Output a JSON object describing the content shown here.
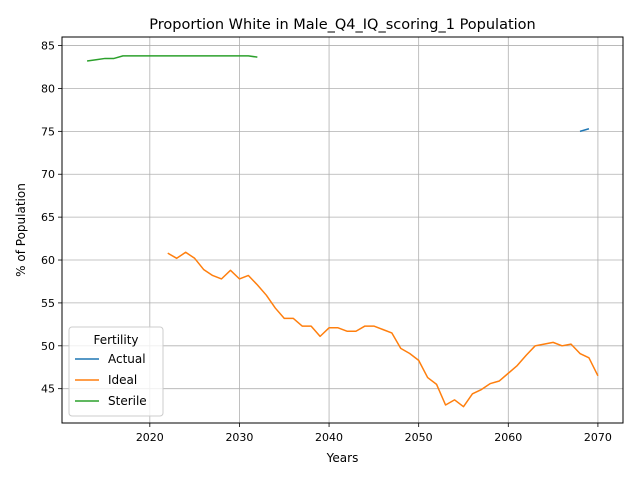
{
  "chart_data": {
    "type": "line",
    "title": "Proportion White in Male_Q4_IQ_scoring_1 Population",
    "xlabel": "Years",
    "ylabel": "% of Population",
    "xlim": [
      2010.2,
      2072.8
    ],
    "ylim": [
      41.0,
      86.0
    ],
    "xticks": [
      2020,
      2030,
      2040,
      2050,
      2060,
      2070
    ],
    "yticks": [
      45,
      50,
      55,
      60,
      65,
      70,
      75,
      80,
      85
    ],
    "grid": true,
    "legend": {
      "title": "Fertility",
      "position": "lower-left"
    },
    "colors": {
      "Actual": "#1f77b4",
      "Ideal": "#ff7f0e",
      "Sterile": "#2ca02c"
    },
    "series": [
      {
        "name": "Actual",
        "x": [
          2068,
          2069
        ],
        "y": [
          75.0,
          75.3
        ]
      },
      {
        "name": "Ideal",
        "x": [
          2022,
          2023,
          2024,
          2025,
          2026,
          2027,
          2028,
          2029,
          2030,
          2031,
          2032,
          2033,
          2034,
          2035,
          2036,
          2037,
          2038,
          2039,
          2040,
          2041,
          2042,
          2043,
          2044,
          2045,
          2046,
          2047,
          2048,
          2049,
          2050,
          2051,
          2052,
          2053,
          2054,
          2055,
          2056,
          2057,
          2058,
          2059,
          2060,
          2061,
          2062,
          2063,
          2064,
          2065,
          2066,
          2067,
          2068,
          2069,
          2070
        ],
        "y": [
          60.8,
          60.2,
          60.9,
          60.2,
          58.9,
          58.2,
          57.8,
          58.8,
          57.8,
          58.2,
          57.1,
          55.9,
          54.4,
          53.2,
          53.2,
          52.3,
          52.3,
          51.1,
          52.1,
          52.1,
          51.7,
          51.7,
          52.3,
          52.3,
          51.9,
          51.5,
          49.7,
          49.1,
          48.3,
          46.3,
          45.5,
          43.1,
          43.7,
          42.9,
          44.4,
          44.9,
          45.6,
          45.9,
          46.8,
          47.7,
          48.9,
          50.0,
          50.2,
          50.4,
          50.0,
          50.2,
          49.1,
          48.6,
          46.5
        ]
      },
      {
        "name": "Sterile",
        "x": [
          2013,
          2014,
          2015,
          2016,
          2017,
          2018,
          2019,
          2020,
          2021,
          2022,
          2023,
          2024,
          2025,
          2026,
          2027,
          2028,
          2029,
          2030,
          2031,
          2032
        ],
        "y": [
          83.2,
          83.35,
          83.5,
          83.5,
          83.8,
          83.8,
          83.8,
          83.8,
          83.8,
          83.8,
          83.8,
          83.8,
          83.8,
          83.8,
          83.8,
          83.8,
          83.8,
          83.8,
          83.8,
          83.65
        ]
      }
    ]
  }
}
